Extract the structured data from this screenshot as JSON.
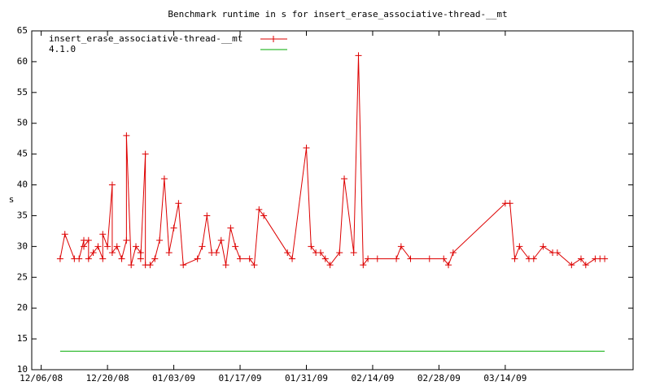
{
  "chart_data": {
    "type": "line",
    "title": "Benchmark runtime in s for insert_erase_associative-thread-__mt",
    "y_label": "s",
    "xlim": [
      "2008-12-04",
      "2009-04-10"
    ],
    "xticks": [
      {
        "value": "2008-12-06",
        "label": "12/06/08"
      },
      {
        "value": "2008-12-20",
        "label": "12/20/08"
      },
      {
        "value": "2009-01-03",
        "label": "01/03/09"
      },
      {
        "value": "2009-01-17",
        "label": "01/17/09"
      },
      {
        "value": "2009-01-31",
        "label": "01/31/09"
      },
      {
        "value": "2009-02-14",
        "label": "02/14/09"
      },
      {
        "value": "2009-02-28",
        "label": "02/28/09"
      },
      {
        "value": "2009-03-14",
        "label": "03/14/09"
      }
    ],
    "ylim": [
      10,
      65
    ],
    "yticks": [
      10,
      15,
      20,
      25,
      30,
      35,
      40,
      45,
      50,
      55,
      60,
      65
    ],
    "legend": "top-left",
    "series": [
      {
        "name": "insert_erase_associative-thread-__mt",
        "color": "#dd0000",
        "marker": "+",
        "x": [
          "2008-12-10",
          "2008-12-11",
          "2008-12-13",
          "2008-12-14",
          "2008-12-15",
          "2008-12-15",
          "2008-12-16",
          "2008-12-16",
          "2008-12-17",
          "2008-12-18",
          "2008-12-19",
          "2008-12-19",
          "2008-12-20",
          "2008-12-21",
          "2008-12-21",
          "2008-12-22",
          "2008-12-23",
          "2008-12-24",
          "2008-12-24",
          "2008-12-25",
          "2008-12-26",
          "2008-12-27",
          "2008-12-27",
          "2008-12-28",
          "2008-12-28",
          "2008-12-29",
          "2008-12-30",
          "2008-12-31",
          "2009-01-01",
          "2009-01-02",
          "2009-01-03",
          "2009-01-04",
          "2009-01-05",
          "2009-01-08",
          "2009-01-09",
          "2009-01-10",
          "2009-01-11",
          "2009-01-12",
          "2009-01-13",
          "2009-01-14",
          "2009-01-15",
          "2009-01-16",
          "2009-01-17",
          "2009-01-19",
          "2009-01-20",
          "2009-01-21",
          "2009-01-22",
          "2009-01-27",
          "2009-01-28",
          "2009-01-31",
          "2009-02-01",
          "2009-02-02",
          "2009-02-03",
          "2009-02-04",
          "2009-02-05",
          "2009-02-07",
          "2009-02-08",
          "2009-02-10",
          "2009-02-11",
          "2009-02-12",
          "2009-02-13",
          "2009-02-15",
          "2009-02-19",
          "2009-02-20",
          "2009-02-22",
          "2009-02-26",
          "2009-03-01",
          "2009-03-02",
          "2009-03-03",
          "2009-03-14",
          "2009-03-15",
          "2009-03-16",
          "2009-03-17",
          "2009-03-19",
          "2009-03-20",
          "2009-03-22",
          "2009-03-24",
          "2009-03-25",
          "2009-03-28",
          "2009-03-30",
          "2009-03-31",
          "2009-04-02",
          "2009-04-03",
          "2009-04-04"
        ],
        "values": [
          28,
          32,
          28,
          28,
          31,
          30,
          31,
          28,
          29,
          30,
          28,
          32,
          30,
          40,
          29,
          30,
          28,
          31,
          48,
          27,
          30,
          29,
          28,
          45,
          27,
          27,
          28,
          31,
          41,
          29,
          33,
          37,
          27,
          28,
          30,
          35,
          29,
          29,
          31,
          27,
          33,
          30,
          28,
          28,
          27,
          36,
          35,
          29,
          28,
          46,
          30,
          29,
          29,
          28,
          27,
          29,
          41,
          29,
          61,
          27,
          28,
          28,
          28,
          30,
          28,
          28,
          28,
          27,
          29,
          37,
          37,
          28,
          30,
          28,
          28,
          30,
          29,
          29,
          27,
          28,
          27,
          28,
          28,
          28
        ]
      },
      {
        "name": "4.1.0",
        "color": "#00aa00",
        "x": [
          "2008-12-10",
          "2009-04-04"
        ],
        "values": [
          13,
          13
        ]
      }
    ]
  }
}
